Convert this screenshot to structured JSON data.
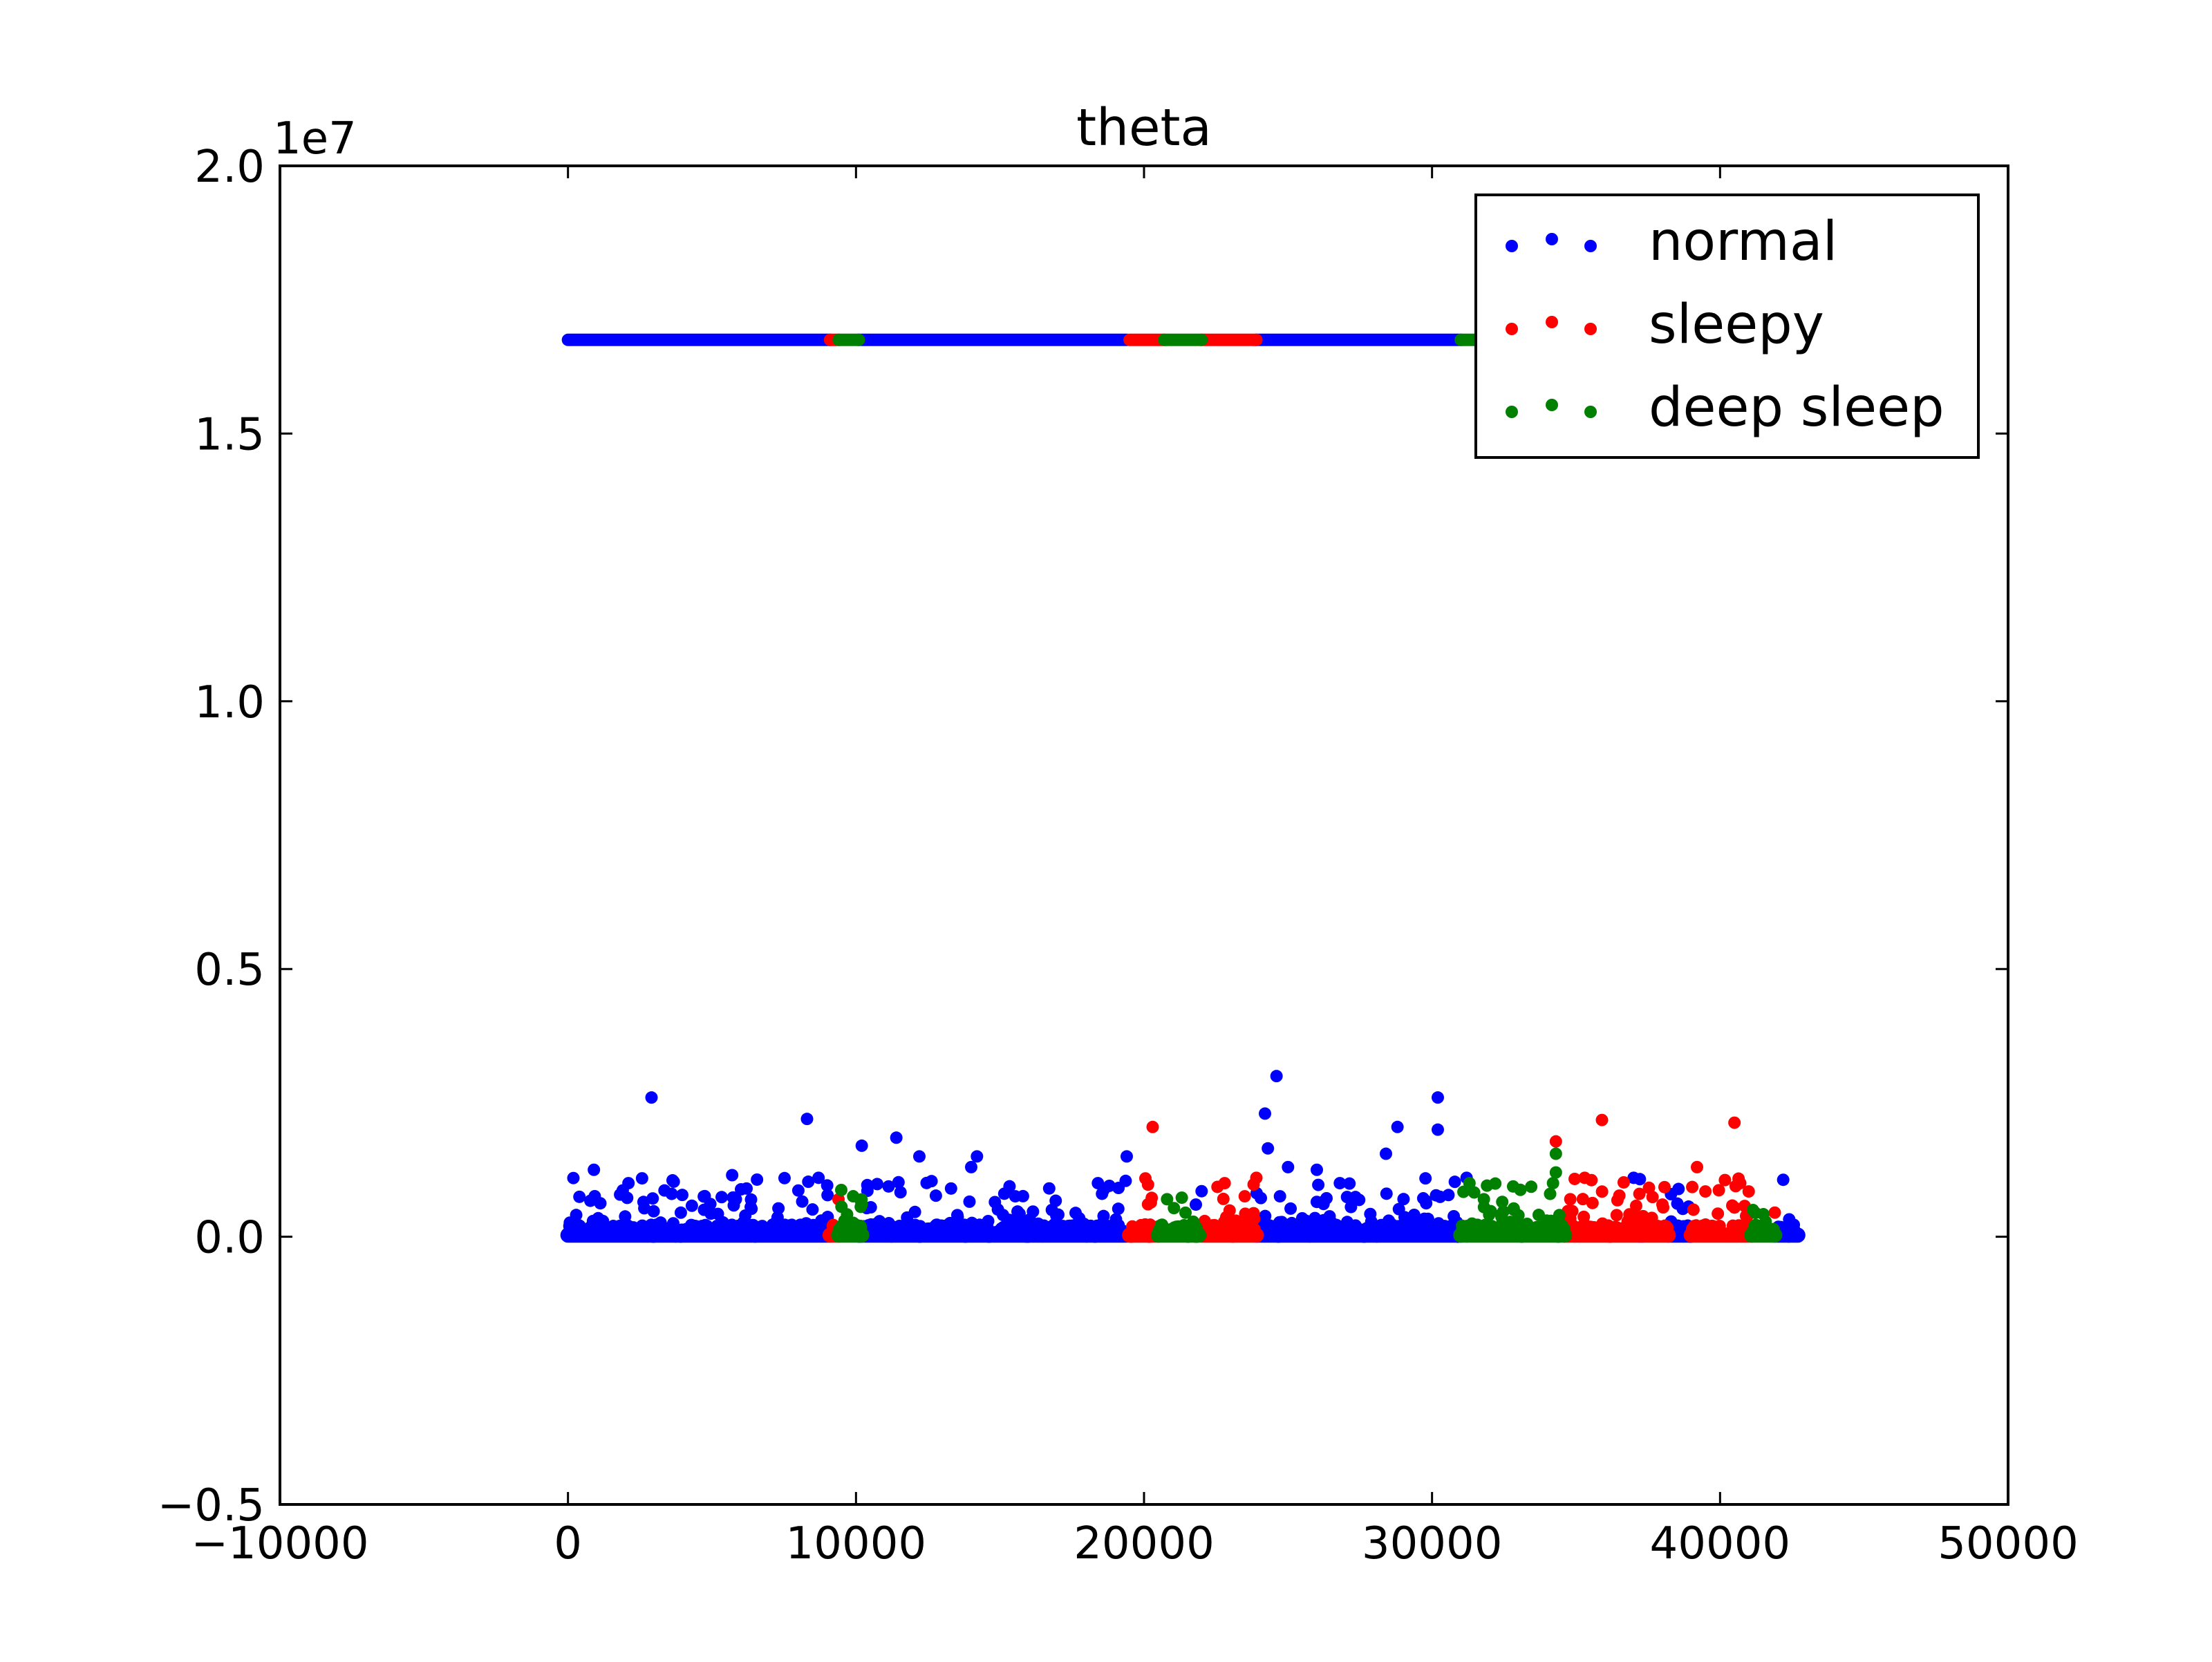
{
  "chart_data": {
    "type": "scatter",
    "title": "theta",
    "xlabel": "",
    "ylabel": "",
    "y_offset_label": "1e7",
    "xlim": [
      -10000,
      50000
    ],
    "ylim": [
      -0.5,
      2.0
    ],
    "y_scale_note": "values in units of 1e7",
    "x_ticks": [
      -10000,
      0,
      10000,
      20000,
      30000,
      40000,
      50000
    ],
    "x_tick_labels": [
      "−10000",
      "0",
      "10000",
      "20000",
      "30000",
      "40000",
      "50000"
    ],
    "y_ticks": [
      -0.5,
      0.0,
      0.5,
      1.0,
      1.5,
      2.0
    ],
    "y_tick_labels": [
      "−0.5",
      "0.0",
      "0.5",
      "1.0",
      "1.5",
      "2.0"
    ],
    "grid": false,
    "legend_position": "top-right",
    "x_range": [
      0,
      42700
    ],
    "series": [
      {
        "name": "normal",
        "color": "#0000ff",
        "band_value": 1.675,
        "band_segments": [
          [
            0,
            9100
          ],
          [
            10100,
            19400
          ],
          [
            23900,
            31000
          ]
        ],
        "base_segments": [
          [
            0,
            9100
          ],
          [
            10100,
            19400
          ],
          [
            23900,
            31000
          ],
          [
            37200,
            37300
          ],
          [
            38200,
            39000
          ],
          [
            41900,
            42700
          ]
        ],
        "points": [
          [
            2900,
            0.26
          ],
          [
            8300,
            0.22
          ],
          [
            10200,
            0.17
          ],
          [
            11400,
            0.185
          ],
          [
            12200,
            0.15
          ],
          [
            14200,
            0.15
          ],
          [
            14000,
            0.13
          ],
          [
            5700,
            0.115
          ],
          [
            900,
            0.125
          ],
          [
            19400,
            0.15
          ],
          [
            24600,
            0.3
          ],
          [
            24200,
            0.23
          ],
          [
            30200,
            0.26
          ],
          [
            28800,
            0.205
          ],
          [
            30200,
            0.2
          ],
          [
            28400,
            0.155
          ],
          [
            24300,
            0.165
          ],
          [
            26000,
            0.125
          ],
          [
            25000,
            0.13
          ],
          [
            22000,
            0.085
          ],
          [
            18400,
            0.1
          ],
          [
            3600,
            0.08
          ],
          [
            6200,
            0.09
          ],
          [
            8700,
            0.11
          ],
          [
            2100,
            0.1
          ],
          [
            13300,
            0.09
          ],
          [
            16800,
            0.05
          ],
          [
            21800,
            0.06
          ],
          [
            37000,
            0.11
          ],
          [
            31200,
            0.11
          ],
          [
            26800,
            0.1
          ]
        ]
      },
      {
        "name": "sleepy",
        "color": "#ff0000",
        "band_value": 1.675,
        "band_segments": [
          [
            9100,
            9400
          ],
          [
            19500,
            20700
          ],
          [
            22000,
            23900
          ],
          [
            31600,
            31700
          ]
        ],
        "base_segments": [
          [
            9100,
            9400
          ],
          [
            19500,
            20500
          ],
          [
            22000,
            23900
          ],
          [
            34600,
            37200
          ],
          [
            37300,
            38200
          ],
          [
            39000,
            41100
          ]
        ],
        "points": [
          [
            20300,
            0.205
          ],
          [
            35900,
            0.218
          ],
          [
            40500,
            0.213
          ],
          [
            34300,
            0.178
          ],
          [
            23900,
            0.11
          ],
          [
            22800,
            0.1
          ],
          [
            35300,
            0.11
          ],
          [
            39200,
            0.13
          ],
          [
            40700,
            0.1
          ],
          [
            37200,
            0.08
          ],
          [
            38000,
            0.06
          ],
          [
            41900,
            0.045
          ],
          [
            34800,
            0.07
          ]
        ]
      },
      {
        "name": "deep sleep",
        "color": "#008000",
        "band_value": 1.675,
        "band_segments": [
          [
            9400,
            10100
          ],
          [
            20700,
            22000
          ],
          [
            31000,
            31600
          ]
        ],
        "base_segments": [
          [
            9400,
            10200
          ],
          [
            20500,
            21900
          ],
          [
            31000,
            34600
          ],
          [
            41100,
            41900
          ]
        ],
        "points": [
          [
            34300,
            0.155
          ],
          [
            34300,
            0.12
          ],
          [
            34200,
            0.1
          ],
          [
            31300,
            0.1
          ],
          [
            20800,
            0.07
          ],
          [
            10200,
            0.06
          ],
          [
            9600,
            0.03
          ],
          [
            31800,
            0.07
          ],
          [
            33000,
            0.04
          ],
          [
            34100,
            0.08
          ]
        ]
      }
    ]
  }
}
